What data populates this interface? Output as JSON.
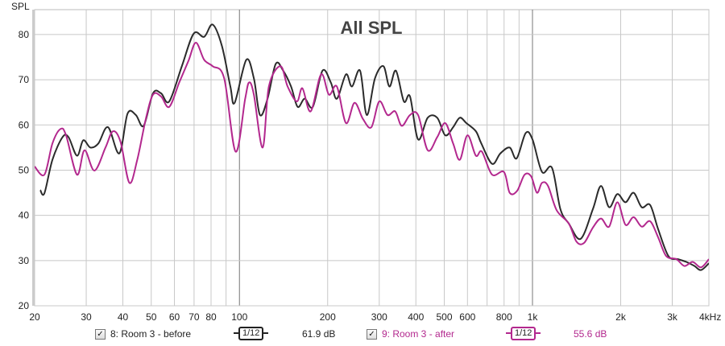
{
  "chart_data": {
    "type": "line",
    "title": "All SPL",
    "ylabel": "SPL",
    "xlabel": "",
    "x_scale": "log",
    "xlim": [
      20,
      4000
    ],
    "ylim": [
      20,
      85.5
    ],
    "grid": true,
    "x_tick_labels": [
      "20",
      "30",
      "40",
      "50",
      "60",
      "70",
      "80",
      "100",
      "200",
      "300",
      "400",
      "500",
      "600",
      "800",
      "1k",
      "2k",
      "3k",
      "4kHz"
    ],
    "x_tick_values": [
      20,
      30,
      40,
      50,
      60,
      70,
      80,
      100,
      200,
      300,
      400,
      500,
      600,
      800,
      1000,
      2000,
      3000,
      4000
    ],
    "y_ticks": [
      20,
      30,
      40,
      50,
      60,
      70,
      80
    ],
    "series": [
      {
        "name": "8: Room 3 - before",
        "color": "#2b2b2b",
        "smoothing": "1/12",
        "level": "61.9 dB",
        "x": [
          20.9,
          21.6,
          23,
          24.9,
          26.1,
          27.9,
          29.3,
          31,
          33,
          35.6,
          38.9,
          41.5,
          44.3,
          47.1,
          50.7,
          54,
          57.6,
          63.6,
          69.8,
          75.8,
          81,
          87.1,
          93.1,
          96.3,
          105.5,
          112,
          117.5,
          124.7,
          133,
          141,
          150,
          158,
          167,
          178,
          192,
          205,
          215,
          231,
          242,
          258,
          272,
          290,
          310,
          325,
          342,
          364,
          382,
          407,
          439,
          473,
          504,
          536,
          565,
          595,
          641,
          669,
          728,
          777,
          836,
          883,
          948,
          1000,
          1078,
          1166,
          1245,
          1330,
          1460,
          1608,
          1713,
          1826,
          1948,
          2078,
          2213,
          2360,
          2520,
          2686,
          2910,
          3140,
          3350,
          3570,
          3760,
          4000
        ],
        "y": [
          45.6,
          44.9,
          52.3,
          57.3,
          57.3,
          53.2,
          56.6,
          55,
          55.9,
          59.5,
          53.7,
          62.5,
          62.2,
          59.8,
          67,
          67,
          65.2,
          73,
          80.2,
          79.5,
          82.2,
          77.5,
          68.5,
          64.9,
          74.4,
          70.3,
          62.2,
          65.8,
          73.5,
          72,
          68.5,
          64,
          65.8,
          64,
          72,
          69.4,
          65.8,
          71.2,
          68.5,
          72,
          62.2,
          70.3,
          73,
          68.5,
          72,
          65.2,
          66.3,
          56.8,
          61.6,
          61.6,
          57.7,
          59.5,
          61.6,
          60.4,
          58.6,
          55.9,
          51.4,
          53.7,
          55,
          52.6,
          58.2,
          56.8,
          49.6,
          50.5,
          41.4,
          38.2,
          34.8,
          41.4,
          46.5,
          41.8,
          44.7,
          42.9,
          45,
          41.8,
          42.3,
          36.9,
          31,
          30.3,
          29.7,
          28.8,
          27.9,
          29.4
        ]
      },
      {
        "name": "9: Room 3 - after",
        "color": "#b3288e",
        "smoothing": "1/12",
        "level": "55.6 dB",
        "x": [
          20,
          21.6,
          23,
          24.5,
          25.6,
          27.9,
          29.6,
          32,
          34.9,
          37,
          39.3,
          42.1,
          44.8,
          47.9,
          50.7,
          54,
          57.6,
          62.3,
          67,
          71,
          75.8,
          81,
          88.7,
          97,
          104.6,
          107.9,
          112,
          120,
          126,
          138,
          146,
          157,
          164,
          175,
          190,
          202,
          215,
          231,
          247,
          264,
          282,
          300,
          320,
          340,
          358,
          382,
          407,
          439,
          473,
          504,
          536,
          565,
          600,
          641,
          672,
          728,
          799,
          836,
          886,
          940,
          990,
          1036,
          1078,
          1130,
          1210,
          1330,
          1413,
          1500,
          1608,
          1713,
          1826,
          1948,
          2078,
          2213,
          2360,
          2520,
          2686,
          2860,
          3100,
          3300,
          3520,
          3760,
          4000
        ],
        "y": [
          50.8,
          49,
          55.9,
          59.1,
          57.7,
          49,
          54.4,
          49.9,
          55,
          58.6,
          56.2,
          47.2,
          52.3,
          61.3,
          66.7,
          66.3,
          64,
          69.4,
          74.2,
          78.2,
          74.4,
          73,
          70.3,
          54.1,
          65.8,
          69.4,
          66.7,
          55,
          68.5,
          73,
          68.5,
          65.2,
          68.1,
          63,
          71.2,
          66.7,
          68.5,
          60.4,
          64.9,
          61.3,
          59.5,
          65.2,
          62.2,
          63,
          59.8,
          62.2,
          62.2,
          54.4,
          57.3,
          60.4,
          55.9,
          52.3,
          57.7,
          53.2,
          54.1,
          49,
          49.6,
          45,
          45.4,
          49,
          48.6,
          45,
          47.2,
          46.5,
          41.1,
          38.2,
          34.2,
          33.9,
          37.3,
          39.3,
          37.5,
          42.9,
          37.9,
          39.6,
          37.5,
          38.7,
          35.1,
          31,
          30.3,
          28.8,
          29.7,
          28.5,
          30.3
        ]
      }
    ]
  },
  "legend": {
    "check": "✓",
    "smoothing_label_num": "1",
    "smoothing_label_den": "12"
  }
}
